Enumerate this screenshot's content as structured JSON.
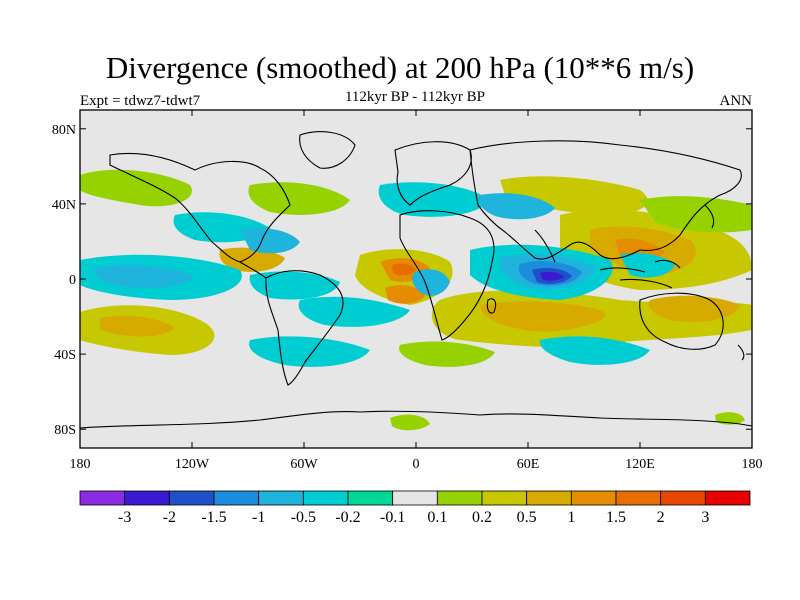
{
  "title": "Divergence (smoothed) at 200 hPa (10**6 m/s)",
  "subtitle": "112kyr BP - 112kyr BP",
  "experiment": "Expt = tdwz7-tdwt7",
  "season": "ANN",
  "axes": {
    "lon_ticks": [
      "180",
      "120W",
      "60W",
      "0",
      "60E",
      "120E",
      "180"
    ],
    "lon_values": [
      -180,
      -120,
      -60,
      0,
      60,
      120,
      180
    ],
    "lat_ticks": [
      "80N",
      "40N",
      "0",
      "40S",
      "80S"
    ],
    "lat_values": [
      80,
      40,
      0,
      -40,
      -80
    ],
    "lon_range": [
      -180,
      180
    ],
    "lat_range": [
      -90,
      90
    ]
  },
  "colorbar": {
    "colors": [
      "#8b2be2",
      "#3c19d2",
      "#1e50c8",
      "#1e8cdc",
      "#1eb4dc",
      "#00cdd2",
      "#00d796",
      "#e6e6e6",
      "#96d200",
      "#c8c800",
      "#d7aa00",
      "#e68c00",
      "#e66e00",
      "#e64600",
      "#e60000"
    ],
    "labels": [
      "-3",
      "-2",
      "-1.5",
      "-1",
      "-0.5",
      "-0.2",
      "-0.1",
      "0.1",
      "0.2",
      "0.5",
      "1",
      "1.5",
      "2",
      "3"
    ]
  },
  "chart_data": {
    "type": "heatmap",
    "variable": "Divergence (smoothed) at 200 hPa",
    "units": "10**6 m/s",
    "background_value_range": [
      -0.1,
      0.1
    ],
    "features": [
      {
        "name": "strong convergence over central Indian Ocean",
        "lon": 72,
        "lat": 0,
        "value": -3
      },
      {
        "name": "divergence over west Pacific warm pool",
        "lon": 130,
        "lat": 0,
        "value": 1.5
      },
      {
        "name": "divergence over Atlantic ITCZ",
        "lon": -5,
        "lat": 5,
        "value": 1.5
      },
      {
        "name": "divergence off west Africa",
        "lon": -5,
        "lat": -10,
        "value": 1
      },
      {
        "name": "convergence band over tropical Atlantic",
        "lon": -30,
        "lat": -15,
        "value": -0.5
      },
      {
        "name": "divergence band over south Indian Ocean",
        "lon": 60,
        "lat": -20,
        "value": 1
      },
      {
        "name": "divergence over southeast Pacific",
        "lon": -140,
        "lat": -25,
        "value": 1
      },
      {
        "name": "convergence over eastern tropical Pacific",
        "lon": -160,
        "lat": 0,
        "value": -0.5
      }
    ]
  }
}
